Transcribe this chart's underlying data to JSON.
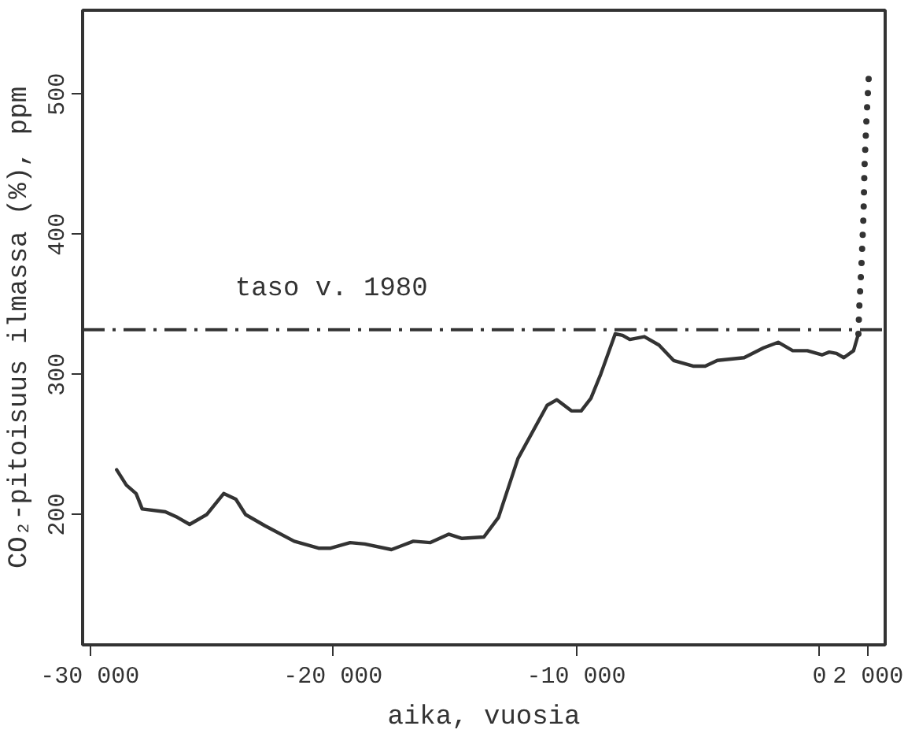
{
  "chart_data": {
    "type": "line",
    "xlabel": "aika, vuosia",
    "ylabel": "CO₂-pitoisuus ilmassa (%), ppm",
    "xlim": [
      -30300,
      2700
    ],
    "ylim": [
      107,
      560
    ],
    "xticks": [
      {
        "value": -30000,
        "label": "-30 000"
      },
      {
        "value": -20000,
        "label": "-20 000"
      },
      {
        "value": -10000,
        "label": "-10 000"
      },
      0,
      {
        "value": 2000,
        "label": "2 000"
      }
    ],
    "yticks": [
      200,
      300,
      400,
      500
    ],
    "grid": false,
    "marker": "none",
    "series": [
      {
        "color": "#333333",
        "line_style": "solid",
        "x": [
          -28900,
          -28500,
          -28100,
          -27850,
          -26900,
          -26400,
          -25900,
          -25200,
          -24500,
          -24000,
          -23600,
          -22800,
          -21600,
          -20600,
          -20100,
          -19300,
          -18700,
          -17600,
          -16700,
          -16000,
          -15250,
          -14700,
          -13800,
          -13200,
          -12400,
          -11200,
          -10800,
          -10200,
          -9800,
          -9400,
          -9000,
          -8400,
          -8100,
          -7800,
          -7200,
          -6600,
          -6000,
          -5200,
          -4700,
          -4200,
          -3100,
          -2300,
          -1700,
          -1100,
          -500,
          100,
          400,
          700,
          1000,
          1400,
          1600
        ],
        "values": [
          232,
          221,
          215,
          204,
          202,
          198,
          193,
          200,
          215,
          211,
          200,
          192,
          181,
          176,
          176,
          180,
          179,
          175,
          181,
          180,
          186,
          183,
          184,
          198,
          240,
          278,
          282,
          274,
          274,
          283,
          300,
          329,
          328,
          325,
          327,
          321,
          310,
          306,
          306,
          310,
          312,
          319,
          323,
          317,
          317,
          314,
          316,
          315,
          312,
          317,
          329
        ]
      },
      {
        "color": "#333333",
        "line_style": "dotted",
        "x": [
          1600,
          1630,
          1730,
          1810,
          1850,
          1930,
          2030
        ],
        "values": [
          329,
          346,
          380,
          414,
          448,
          482,
          514
        ]
      }
    ],
    "ref_lines": [
      {
        "axis": "y",
        "value": 332,
        "label": "taso v. 1980",
        "color": "#333333",
        "line_style": "dashdot"
      }
    ]
  }
}
